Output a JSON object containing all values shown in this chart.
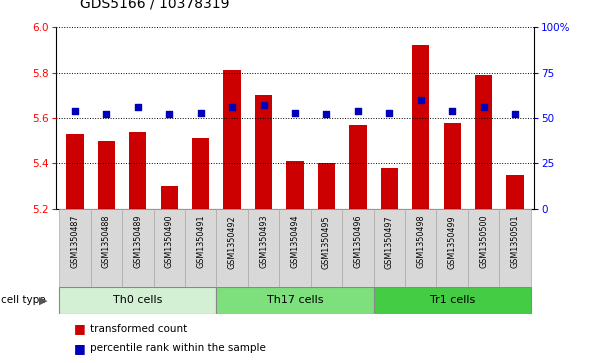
{
  "title": "GDS5166 / 10378319",
  "samples": [
    "GSM1350487",
    "GSM1350488",
    "GSM1350489",
    "GSM1350490",
    "GSM1350491",
    "GSM1350492",
    "GSM1350493",
    "GSM1350494",
    "GSM1350495",
    "GSM1350496",
    "GSM1350497",
    "GSM1350498",
    "GSM1350499",
    "GSM1350500",
    "GSM1350501"
  ],
  "transformed_count": [
    5.53,
    5.5,
    5.54,
    5.3,
    5.51,
    5.81,
    5.7,
    5.41,
    5.4,
    5.57,
    5.38,
    5.92,
    5.58,
    5.79,
    5.35
  ],
  "percentile_rank": [
    54,
    52,
    56,
    52,
    53,
    56,
    57,
    53,
    52,
    54,
    53,
    60,
    54,
    56,
    52
  ],
  "cell_groups": [
    {
      "label": "Th0 cells",
      "start": 0,
      "end": 5,
      "color": "#d4f0d4"
    },
    {
      "label": "Th17 cells",
      "start": 5,
      "end": 10,
      "color": "#7de07d"
    },
    {
      "label": "Tr1 cells",
      "start": 10,
      "end": 15,
      "color": "#44cc44"
    }
  ],
  "bar_color": "#cc0000",
  "dot_color": "#0000bb",
  "ylim_left": [
    5.2,
    6.0
  ],
  "ylim_right": [
    0,
    100
  ],
  "yticks_left": [
    5.2,
    5.4,
    5.6,
    5.8,
    6.0
  ],
  "yticks_right": [
    0,
    25,
    50,
    75,
    100
  ],
  "ytick_labels_right": [
    "0",
    "25",
    "50",
    "75",
    "100%"
  ],
  "bar_bottom": 5.2,
  "legend_label1": "transformed count",
  "legend_label2": "percentile rank within the sample",
  "cell_type_label": "cell type",
  "sample_bg_color": "#d8d8d8",
  "title_fontsize": 10,
  "bar_width": 0.55
}
